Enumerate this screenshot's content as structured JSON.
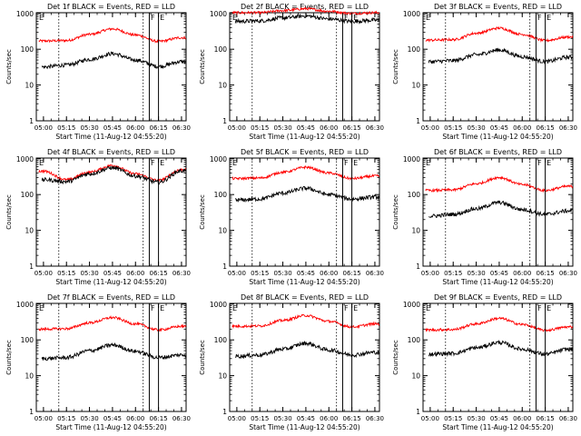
{
  "x_tick_labels": [
    "05:00",
    "05:15",
    "05:30",
    "05:45",
    "06:00",
    "06:15",
    "06:30"
  ],
  "xlabel": "Start Time (11-Aug-12 04:55:20)",
  "ylabel": "Counts/sec",
  "y_tick_labels": [
    "1",
    "10",
    "100",
    "1000"
  ],
  "marker_labels": [
    "E",
    "F",
    "E"
  ],
  "colors": {
    "events": "#000000",
    "lld": "#ff0000",
    "axes": "#000000"
  },
  "chart_data": [
    {
      "type": "line",
      "title": "Det 1f BLACK = Events, RED = LLD",
      "x": [
        "05:00",
        "05:15",
        "05:30",
        "05:45",
        "06:00",
        "06:15",
        "06:30"
      ],
      "ylim": [
        1,
        1000
      ],
      "yscale": "log",
      "xlim": [
        "04:55:20",
        "06:33"
      ],
      "series": [
        {
          "name": "LLD",
          "values": [
            170,
            175,
            260,
            370,
            250,
            165,
            210
          ]
        },
        {
          "name": "Events",
          "values": [
            32,
            36,
            52,
            75,
            50,
            33,
            45
          ]
        }
      ]
    },
    {
      "type": "line",
      "title": "Det 2f BLACK = Events, RED = LLD",
      "x": [
        "05:00",
        "05:15",
        "05:30",
        "05:45",
        "06:00",
        "06:15",
        "06:30"
      ],
      "ylim": [
        1,
        1000
      ],
      "yscale": "log",
      "xlim": [
        "04:55:20",
        "06:33"
      ],
      "series": [
        {
          "name": "LLD",
          "values": [
            1050,
            1050,
            1200,
            1350,
            1150,
            1000,
            1050
          ]
        },
        {
          "name": "Events",
          "values": [
            600,
            620,
            750,
            850,
            700,
            600,
            650
          ]
        }
      ]
    },
    {
      "type": "line",
      "title": "Det 3f BLACK = Events, RED = LLD",
      "x": [
        "05:00",
        "05:15",
        "05:30",
        "05:45",
        "06:00",
        "06:15",
        "06:30"
      ],
      "ylim": [
        1,
        1000
      ],
      "yscale": "log",
      "xlim": [
        "04:55:20",
        "06:33"
      ],
      "series": [
        {
          "name": "LLD",
          "values": [
            180,
            185,
            280,
            390,
            260,
            175,
            220
          ]
        },
        {
          "name": "Events",
          "values": [
            45,
            48,
            70,
            95,
            62,
            45,
            60
          ]
        }
      ]
    },
    {
      "type": "line",
      "title": "Det 4f BLACK = Events, RED = LLD",
      "x": [
        "05:00",
        "05:15",
        "05:30",
        "05:45",
        "06:00",
        "06:15",
        "06:30"
      ],
      "ylim": [
        1,
        1000
      ],
      "yscale": "log",
      "xlim": [
        "04:55:20",
        "06:33"
      ],
      "series": [
        {
          "name": "LLD",
          "values": [
            450,
            260,
            420,
            650,
            380,
            250,
            500
          ]
        },
        {
          "name": "Events",
          "values": [
            260,
            230,
            380,
            560,
            330,
            220,
            460
          ]
        }
      ]
    },
    {
      "type": "line",
      "title": "Det 5f BLACK = Events, RED = LLD",
      "x": [
        "05:00",
        "05:15",
        "05:30",
        "05:45",
        "06:00",
        "06:15",
        "06:30"
      ],
      "ylim": [
        1,
        1000
      ],
      "yscale": "log",
      "xlim": [
        "04:55:20",
        "06:33"
      ],
      "series": [
        {
          "name": "LLD",
          "values": [
            280,
            290,
            420,
            580,
            400,
            280,
            330
          ]
        },
        {
          "name": "Events",
          "values": [
            70,
            75,
            110,
            150,
            100,
            75,
            85
          ]
        }
      ]
    },
    {
      "type": "line",
      "title": "Det 6f BLACK = Events, RED = LLD",
      "x": [
        "05:00",
        "05:15",
        "05:30",
        "05:45",
        "06:00",
        "06:15",
        "06:30"
      ],
      "ylim": [
        1,
        1000
      ],
      "yscale": "log",
      "xlim": [
        "04:55:20",
        "06:33"
      ],
      "series": [
        {
          "name": "LLD",
          "values": [
            130,
            135,
            200,
            300,
            190,
            130,
            170
          ]
        },
        {
          "name": "Events",
          "values": [
            25,
            28,
            40,
            60,
            38,
            28,
            35
          ]
        }
      ]
    },
    {
      "type": "line",
      "title": "Det 7f BLACK = Events, RED = LLD",
      "x": [
        "05:00",
        "05:15",
        "05:30",
        "05:45",
        "06:00",
        "06:15",
        "06:30"
      ],
      "ylim": [
        1,
        1000
      ],
      "yscale": "log",
      "xlim": [
        "04:55:20",
        "06:33"
      ],
      "series": [
        {
          "name": "LLD",
          "values": [
            200,
            205,
            300,
            420,
            280,
            190,
            240
          ]
        },
        {
          "name": "Events",
          "values": [
            30,
            32,
            50,
            72,
            48,
            32,
            38
          ]
        }
      ]
    },
    {
      "type": "line",
      "title": "Det 8f BLACK = Events, RED = LLD",
      "x": [
        "05:00",
        "05:15",
        "05:30",
        "05:45",
        "06:00",
        "06:15",
        "06:30"
      ],
      "ylim": [
        1,
        1000
      ],
      "yscale": "log",
      "xlim": [
        "04:55:20",
        "06:33"
      ],
      "series": [
        {
          "name": "LLD",
          "values": [
            240,
            245,
            350,
            480,
            330,
            230,
            280
          ]
        },
        {
          "name": "Events",
          "values": [
            35,
            38,
            55,
            80,
            52,
            38,
            45
          ]
        }
      ]
    },
    {
      "type": "line",
      "title": "Det 9f BLACK = Events, RED = LLD",
      "x": [
        "05:00",
        "05:15",
        "05:30",
        "05:45",
        "06:00",
        "06:15",
        "06:30"
      ],
      "ylim": [
        1,
        1000
      ],
      "yscale": "log",
      "xlim": [
        "04:55:20",
        "06:33"
      ],
      "series": [
        {
          "name": "LLD",
          "values": [
            190,
            195,
            280,
            400,
            270,
            185,
            230
          ]
        },
        {
          "name": "Events",
          "values": [
            40,
            42,
            60,
            85,
            55,
            40,
            55
          ]
        }
      ]
    }
  ],
  "panel_markers": [
    {
      "dotted": [
        "05:10",
        "06:05"
      ],
      "solid": [
        "06:09",
        "06:15"
      ]
    },
    {
      "dotted": [
        "05:10",
        "06:05"
      ],
      "solid": [
        "06:09",
        "06:15"
      ]
    },
    {
      "dotted": [
        "05:10",
        "06:05"
      ],
      "solid": [
        "06:09",
        "06:15"
      ]
    },
    {
      "dotted": [
        "05:10",
        "06:05"
      ],
      "solid": [
        "06:09",
        "06:15"
      ]
    },
    {
      "dotted": [
        "05:10",
        "06:05"
      ],
      "solid": [
        "06:09",
        "06:15"
      ]
    },
    {
      "dotted": [
        "05:10",
        "06:05"
      ],
      "solid": [
        "06:09",
        "06:15"
      ]
    },
    {
      "dotted": [
        "05:10",
        "06:05"
      ],
      "solid": [
        "06:09",
        "06:15"
      ]
    },
    {
      "dotted": [
        "05:10",
        "06:05"
      ],
      "solid": [
        "06:09",
        "06:15"
      ]
    },
    {
      "dotted": [
        "05:10",
        "06:05"
      ],
      "solid": [
        "06:09",
        "06:15"
      ]
    }
  ]
}
